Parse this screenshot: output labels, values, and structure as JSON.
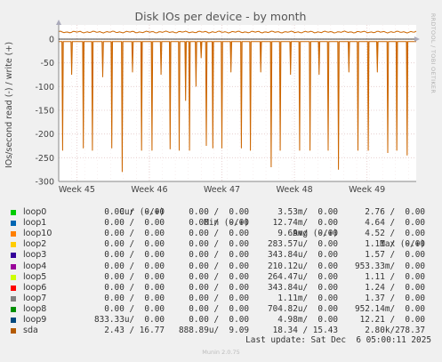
{
  "chart_data": {
    "type": "line",
    "title": "Disk IOs per device - by month",
    "ylabel": "IOs/second read (-) / write (+)",
    "ylim": [
      -300,
      30
    ],
    "yticks": [
      0,
      -50,
      -100,
      -150,
      -200,
      -250,
      -300
    ],
    "ytick_labels": [
      "0",
      "-50",
      "-100",
      "-150",
      "-200",
      "-250",
      "-300"
    ],
    "xticks": [
      "Week 45",
      "Week 46",
      "Week 47",
      "Week 48",
      "Week 49"
    ],
    "grid": true,
    "side_label": "RRDTOOL / TOBI OETIKER",
    "series": [
      {
        "name": "sda",
        "color": "#cc6600",
        "write_level": 15,
        "read_base": -5,
        "read_spikes": [
          {
            "day": 0.3,
            "value": -235
          },
          {
            "day": 1.0,
            "value": -75
          },
          {
            "day": 1.9,
            "value": -230
          },
          {
            "day": 2.6,
            "value": -235
          },
          {
            "day": 3.4,
            "value": -80
          },
          {
            "day": 4.1,
            "value": -230
          },
          {
            "day": 4.9,
            "value": -280
          },
          {
            "day": 5.7,
            "value": -70
          },
          {
            "day": 6.4,
            "value": -235
          },
          {
            "day": 7.2,
            "value": -235
          },
          {
            "day": 7.9,
            "value": -75
          },
          {
            "day": 8.6,
            "value": -232
          },
          {
            "day": 9.3,
            "value": -235
          },
          {
            "day": 9.8,
            "value": -130
          },
          {
            "day": 10.1,
            "value": -235
          },
          {
            "day": 10.6,
            "value": -100
          },
          {
            "day": 11.0,
            "value": -40
          },
          {
            "day": 11.4,
            "value": -225
          },
          {
            "day": 11.9,
            "value": -230
          },
          {
            "day": 12.6,
            "value": -230
          },
          {
            "day": 13.3,
            "value": -70
          },
          {
            "day": 14.1,
            "value": -230
          },
          {
            "day": 14.8,
            "value": -235
          },
          {
            "day": 15.6,
            "value": -70
          },
          {
            "day": 16.4,
            "value": -270
          },
          {
            "day": 17.1,
            "value": -235
          },
          {
            "day": 17.9,
            "value": -75
          },
          {
            "day": 18.6,
            "value": -235
          },
          {
            "day": 19.4,
            "value": -235
          },
          {
            "day": 20.1,
            "value": -75
          },
          {
            "day": 20.8,
            "value": -235
          },
          {
            "day": 21.6,
            "value": -275
          },
          {
            "day": 22.4,
            "value": -70
          },
          {
            "day": 23.1,
            "value": -235
          },
          {
            "day": 23.9,
            "value": -235
          },
          {
            "day": 24.6,
            "value": -70
          },
          {
            "day": 25.4,
            "value": -240
          },
          {
            "day": 26.1,
            "value": -235
          },
          {
            "day": 26.9,
            "value": -245
          }
        ]
      }
    ],
    "week_positions": [
      1.4,
      7.0,
      12.6,
      18.2,
      23.8
    ],
    "days_span": 27.6
  },
  "legend": {
    "headers": {
      "cur": "Cur (-/+)",
      "min": "Min (-/+)",
      "avg": "Avg (-/+)",
      "max": "Max (-/+)"
    },
    "rows": [
      {
        "name": "loop0",
        "color": "#00cc00",
        "cur": "0.00 /  0.00",
        "min": "0.00 /  0.00",
        "avg": "3.53m/  0.00",
        "max": "2.76 /  0.00"
      },
      {
        "name": "loop1",
        "color": "#0066b3",
        "cur": "0.00 /  0.00",
        "min": "0.00 /  0.00",
        "avg": "12.74m/  0.00",
        "max": "4.64 /  0.00"
      },
      {
        "name": "loop10",
        "color": "#ff8000",
        "cur": "0.00 /  0.00",
        "min": "0.00 /  0.00",
        "avg": "9.69m/  0.00",
        "max": "4.52 /  0.00"
      },
      {
        "name": "loop2",
        "color": "#ffcc00",
        "cur": "0.00 /  0.00",
        "min": "0.00 /  0.00",
        "avg": "283.57u/  0.00",
        "max": "1.11 /  0.00"
      },
      {
        "name": "loop3",
        "color": "#330099",
        "cur": "0.00 /  0.00",
        "min": "0.00 /  0.00",
        "avg": "343.84u/  0.00",
        "max": "1.57 /  0.00"
      },
      {
        "name": "loop4",
        "color": "#990099",
        "cur": "0.00 /  0.00",
        "min": "0.00 /  0.00",
        "avg": "210.12u/  0.00",
        "max": "953.33m/  0.00"
      },
      {
        "name": "loop5",
        "color": "#ccff00",
        "cur": "0.00 /  0.00",
        "min": "0.00 /  0.00",
        "avg": "264.47u/  0.00",
        "max": "1.11 /  0.00"
      },
      {
        "name": "loop6",
        "color": "#ff0000",
        "cur": "0.00 /  0.00",
        "min": "0.00 /  0.00",
        "avg": "343.84u/  0.00",
        "max": "1.24 /  0.00"
      },
      {
        "name": "loop7",
        "color": "#808080",
        "cur": "0.00 /  0.00",
        "min": "0.00 /  0.00",
        "avg": "1.11m/  0.00",
        "max": "1.37 /  0.00"
      },
      {
        "name": "loop8",
        "color": "#008f00",
        "cur": "0.00 /  0.00",
        "min": "0.00 /  0.00",
        "avg": "704.82u/  0.00",
        "max": "952.14m/  0.00"
      },
      {
        "name": "loop9",
        "color": "#00487d",
        "cur": "833.33u/  0.00",
        "min": "0.00 /  0.00",
        "avg": "4.98m/  0.00",
        "max": "12.21 /  0.00"
      },
      {
        "name": "sda",
        "color": "#b35a00",
        "cur": "2.43 / 16.77",
        "min": "888.89u/  9.09",
        "avg": "18.34 / 15.43",
        "max": "2.80k/278.37"
      }
    ]
  },
  "footer": {
    "last_update": "Last update: Sat Dec  6 05:00:11 2025",
    "munin": "Munin 2.0.75"
  }
}
